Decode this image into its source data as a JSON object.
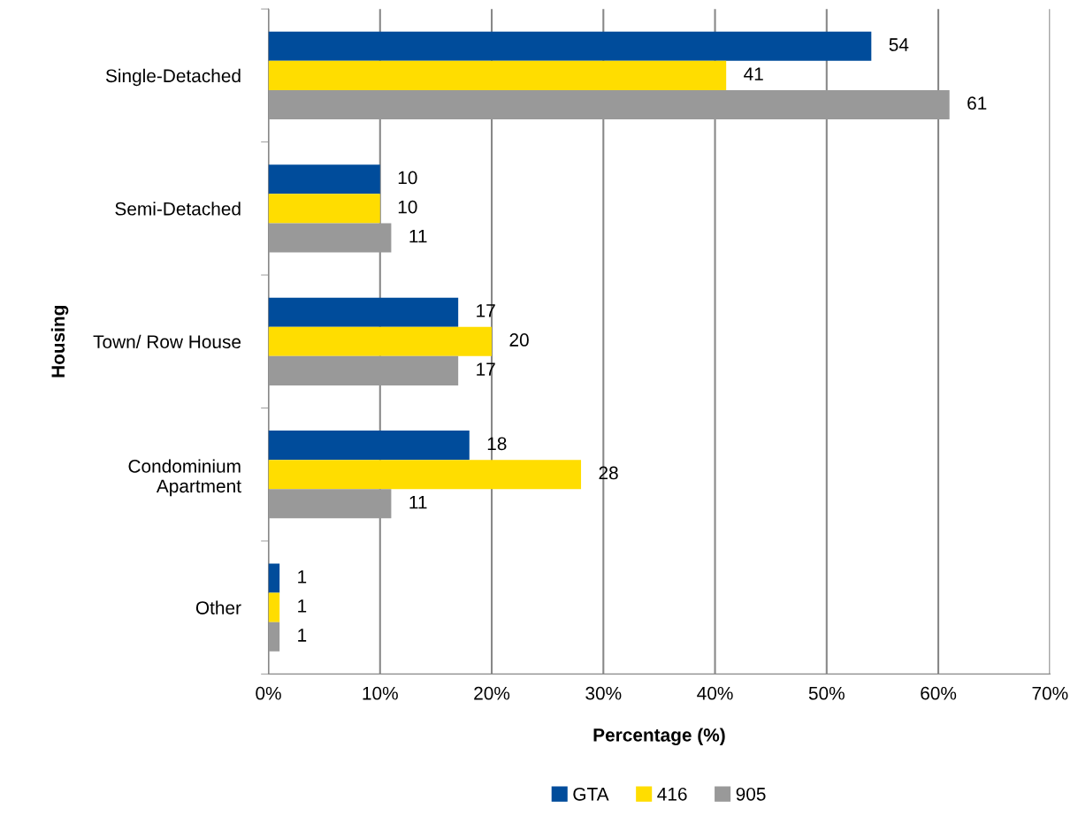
{
  "chart_data": {
    "type": "bar",
    "orientation": "horizontal",
    "xlabel": "Percentage (%)",
    "ylabel": "Housing",
    "categories": [
      "Single-Detached",
      "Semi-Detached",
      "Town/ Row House",
      "Condominium\nApartment",
      "Other"
    ],
    "series": [
      {
        "name": "GTA",
        "color": "#004c9b",
        "values": [
          54,
          10,
          17,
          18,
          1
        ]
      },
      {
        "name": "416",
        "color": "#ffdd00",
        "values": [
          41,
          10,
          20,
          28,
          1
        ]
      },
      {
        "name": "905",
        "color": "#999999",
        "values": [
          61,
          11,
          17,
          11,
          1
        ]
      }
    ],
    "xlim": [
      0,
      70
    ],
    "xticks": [
      {
        "value": 0,
        "label": "0%"
      },
      {
        "value": 10,
        "label": "10%"
      },
      {
        "value": 20,
        "label": "20%"
      },
      {
        "value": 30,
        "label": "30%"
      },
      {
        "value": 40,
        "label": "40%"
      },
      {
        "value": 50,
        "label": "50%"
      },
      {
        "value": 60,
        "label": "60%"
      },
      {
        "value": 70,
        "label": "70%"
      }
    ],
    "grid": "x",
    "legend": "bottom",
    "data_labels": true
  }
}
